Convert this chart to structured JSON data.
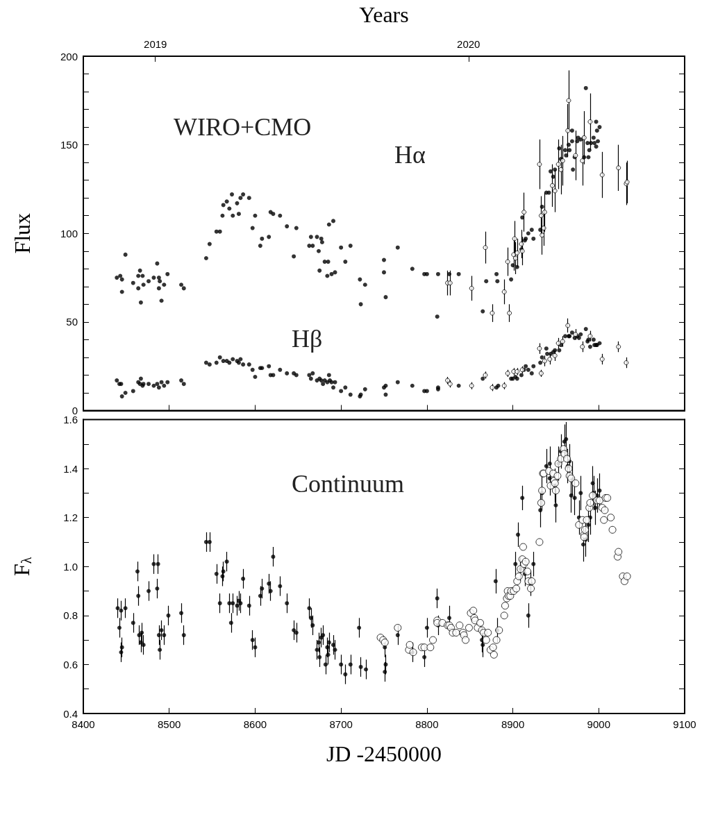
{
  "chart_data": [
    {
      "type": "scatter",
      "x2label": "Years",
      "ylabel": "Flux",
      "xlim": [
        8400,
        9100
      ],
      "xticks": [
        {
          "value": 8500,
          "label": null
        },
        {
          "value": 8600,
          "label": null
        },
        {
          "value": 8700,
          "label": null
        },
        {
          "value": 8800,
          "label": null
        },
        {
          "value": 8900,
          "label": null
        },
        {
          "value": 9000,
          "label": null
        }
      ],
      "x2lim": [
        2018.77,
        2020.69
      ],
      "x2ticks": [
        2019,
        2020
      ],
      "ylim": [
        0,
        200
      ],
      "yticks": [
        0,
        {
          "value": 10,
          "label": null
        },
        {
          "value": 20,
          "label": null
        },
        {
          "value": 30,
          "label": null
        },
        {
          "value": 40,
          "label": null
        },
        50,
        {
          "value": 60,
          "label": null
        },
        {
          "value": 70,
          "label": null
        },
        {
          "value": 80,
          "label": null
        },
        {
          "value": 90,
          "label": null
        },
        100,
        {
          "value": 110,
          "label": null
        },
        {
          "value": 120,
          "label": null
        },
        {
          "value": 130,
          "label": null
        },
        {
          "value": 140,
          "label": null
        },
        150,
        {
          "value": 160,
          "label": null
        },
        {
          "value": 170,
          "label": null
        },
        {
          "value": 180,
          "label": null
        },
        {
          "value": 190,
          "label": null
        },
        200
      ],
      "tick_labels": "y",
      "grid": false,
      "marker": "circle",
      "annotations": [
        "WIRO+CMO",
        "Hα",
        "Hβ"
      ],
      "series": [
        {
          "color": "#000000",
          "x": [
            8439,
            8443,
            8445,
            8445,
            8449,
            8458,
            8464,
            8466,
            8464,
            8469,
            8470,
            8467,
            8476,
            8482,
            8486,
            8488,
            8489,
            8488,
            8491,
            8494,
            8498,
            8514,
            8517,
            8543,
            8547,
            8555,
            8559,
            8562,
            8563,
            8567,
            8570,
            8573,
            8574,
            8579,
            8581,
            8583,
            8586,
            8593,
            8597,
            8600,
            8606,
            8608,
            8616,
            8618,
            8621,
            8629,
            8637,
            8645,
            8648,
            8663,
            8665,
            8667,
            8672,
            8674,
            8675,
            8677,
            8678,
            8681,
            8685,
            8684,
            8689,
            8693,
            8686,
            8691,
            8700,
            8705,
            8711,
            8722,
            8723,
            8728,
            8750,
            8750,
            8752,
            8766,
            8783,
            8797,
            8800,
            8813,
            8812,
            8826,
            8837,
            8865,
            8869,
            8881,
            8882,
            8898,
            8900,
            8905,
            8910,
            8911,
            8914,
            8915,
            8918,
            8922,
            8924,
            8932,
            8934,
            8939,
            8942,
            8944,
            8947,
            8949,
            8954,
            8956,
            8961,
            8962,
            8965,
            8966,
            8969,
            8969,
            8970,
            8972,
            8975,
            8976,
            8979,
            8983,
            8985,
            8987,
            8988,
            8989,
            8991,
            8994,
            8995,
            8997,
            8997,
            8998,
            8999,
            9001
          ],
          "values": [
            75,
            76,
            74,
            67,
            88,
            72,
            76,
            79,
            69,
            76,
            71,
            61,
            73,
            75,
            83,
            75,
            73,
            69,
            62,
            71,
            77,
            71,
            69,
            86,
            94,
            101,
            101,
            110,
            116,
            118,
            114,
            122,
            110,
            117,
            111,
            120,
            122,
            120,
            103,
            110,
            93,
            97,
            98,
            112,
            111,
            110,
            104,
            87,
            103,
            93,
            98,
            93,
            98,
            90,
            79,
            97,
            95,
            84,
            84,
            76,
            77,
            78,
            105,
            107,
            92,
            84,
            93,
            74,
            60,
            71,
            85,
            78,
            64,
            92,
            80,
            77,
            77,
            77,
            53,
            77,
            77,
            56,
            73,
            77,
            73,
            74,
            82,
            81,
            91,
            109,
            96,
            97,
            100,
            102,
            97,
            102,
            115,
            123,
            123,
            135,
            132,
            136,
            148,
            142,
            147,
            144,
            150,
            147,
            158,
            152,
            136,
            143,
            152,
            154,
            153,
            143,
            182,
            151,
            143,
            147,
            151,
            154,
            151,
            149,
            163,
            158,
            152,
            160
          ]
        },
        {
          "color": "#000000",
          "x": [
            8824,
            8827,
            8852,
            8868,
            8876,
            8890,
            8894,
            8896,
            8901,
            8902,
            8903,
            8905,
            8910,
            8911,
            8913,
            8931,
            8933,
            8934,
            8936,
            8937,
            8946,
            8949,
            8953,
            8956,
            8958,
            8965,
            8964,
            8973,
            8981,
            8983,
            8990,
            9004,
            9023,
            9032,
            9033
          ],
          "values": [
            72,
            72,
            69,
            92,
            55,
            67,
            84,
            55,
            88,
            97,
            86,
            89,
            94,
            90,
            112,
            139,
            110,
            99,
            103,
            112,
            127,
            124,
            139,
            136,
            141,
            175,
            158,
            144,
            141,
            154,
            163,
            133,
            137,
            128,
            129
          ],
          "errors": [
            7,
            7,
            7,
            9,
            5,
            7,
            8,
            5,
            9,
            10,
            9,
            8,
            8,
            8,
            11,
            14,
            11,
            11,
            10,
            11,
            12,
            12,
            14,
            14,
            14,
            17,
            15,
            14,
            14,
            15,
            16,
            13,
            13,
            12,
            12
          ]
        },
        {
          "color": "#000000",
          "x": [
            8439,
            8442,
            8444,
            8445,
            8449,
            8458,
            8464,
            8466,
            8467,
            8469,
            8470,
            8476,
            8482,
            8486,
            8488,
            8491,
            8494,
            8498,
            8514,
            8517,
            8543,
            8547,
            8555,
            8559,
            8563,
            8567,
            8570,
            8574,
            8579,
            8581,
            8583,
            8586,
            8593,
            8597,
            8600,
            8606,
            8608,
            8616,
            8618,
            8621,
            8629,
            8637,
            8645,
            8648,
            8663,
            8665,
            8667,
            8672,
            8675,
            8677,
            8679,
            8681,
            8684,
            8686,
            8687,
            8689,
            8691,
            8693,
            8700,
            8705,
            8711,
            8722,
            8723,
            8728,
            8750,
            8752,
            8752,
            8766,
            8783,
            8797,
            8800,
            8813,
            8813,
            8837,
            8865,
            8881,
            8883,
            8898,
            8900,
            8903,
            8905,
            8910,
            8913,
            8915,
            8918,
            8922,
            8924,
            8932,
            8934,
            8939,
            8940,
            8944,
            8947,
            8949,
            8954,
            8956,
            8961,
            8965,
            8966,
            8969,
            8972,
            8975,
            8977,
            8979,
            8985,
            8987,
            8988,
            8990,
            8994,
            8995,
            8997,
            8998,
            9001
          ],
          "values": [
            17,
            15,
            15,
            8,
            10,
            11,
            16,
            15,
            18,
            14,
            15,
            15,
            14,
            15,
            13,
            16,
            14,
            16,
            17,
            15,
            27,
            26,
            27,
            30,
            28,
            28,
            27,
            29,
            28,
            27,
            29,
            26,
            26,
            23,
            19,
            24,
            24,
            25,
            20,
            20,
            23,
            21,
            21,
            20,
            20,
            18,
            21,
            17,
            18,
            17,
            15,
            17,
            16,
            20,
            17,
            16,
            13,
            16,
            11,
            13,
            9,
            8,
            9,
            12,
            13,
            9,
            14,
            16,
            14,
            11,
            11,
            13,
            12,
            14,
            18,
            13,
            14,
            18,
            18,
            19,
            18,
            20,
            23,
            25,
            23,
            21,
            25,
            27,
            30,
            35,
            32,
            32,
            33,
            34,
            34,
            37,
            42,
            42,
            42,
            44,
            41,
            42,
            41,
            43,
            46,
            39,
            40,
            36,
            40,
            37,
            37,
            37,
            38
          ]
        },
        {
          "color": "#000000",
          "x": [
            8824,
            8827,
            8852,
            8868,
            8876,
            8890,
            8894,
            8901,
            8905,
            8911,
            8931,
            8933,
            8937,
            8943,
            8949,
            8953,
            8958,
            8964,
            8973,
            8981,
            8990,
            9004,
            9023,
            9032
          ],
          "values": [
            17,
            15,
            14,
            20,
            13,
            14,
            21,
            22,
            22,
            23,
            35,
            21,
            28,
            29,
            31,
            38,
            39,
            48,
            43,
            36,
            42,
            29,
            36,
            27
          ],
          "errors": [
            2,
            2,
            2,
            2,
            2,
            2,
            2,
            2,
            2,
            2,
            3,
            2,
            3,
            3,
            3,
            3,
            3,
            4,
            3,
            3,
            3,
            3,
            3,
            3
          ]
        }
      ]
    },
    {
      "type": "scatter",
      "xlabel": "JD -2450000",
      "ylabel": "F$_{λ}$",
      "xlim": [
        8400,
        9100
      ],
      "xticks": [
        8400,
        8500,
        8600,
        8700,
        8800,
        8900,
        9000,
        9100
      ],
      "ylim": [
        0.4,
        1.6
      ],
      "yticks": [
        0.4,
        {
          "value": 0.5,
          "label": null
        },
        0.6,
        {
          "value": 0.7,
          "label": null
        },
        0.8,
        {
          "value": 0.9,
          "label": null
        },
        {
          "value": 1,
          "label": "1.0"
        },
        {
          "value": 1.1,
          "label": null
        },
        1.2,
        {
          "value": 1.3,
          "label": null
        },
        1.4,
        {
          "value": 1.5,
          "label": null
        },
        1.6
      ],
      "grid": false,
      "marker": "circle",
      "annotations": [
        "Continuum"
      ],
      "series": [
        {
          "color": "#000000",
          "x": [
            8440,
            8442,
            8444,
            8444,
            8445,
            8449,
            8458,
            8463,
            8464,
            8465,
            8467,
            8468,
            8470,
            8476,
            8482,
            8486,
            8487,
            8488,
            8489,
            8491,
            8494,
            8499,
            8514,
            8517,
            8543,
            8547,
            8555,
            8559,
            8562,
            8563,
            8567,
            8570,
            8572,
            8574,
            8579,
            8581,
            8583,
            8586,
            8593,
            8597,
            8600,
            8606,
            8608,
            8616,
            8618,
            8621,
            8629,
            8637,
            8645,
            8648,
            8663,
            8665,
            8667,
            8672,
            8674,
            8675,
            8677,
            8679,
            8682,
            8684,
            8685,
            8686,
            8691,
            8693,
            8700,
            8705,
            8711,
            8721,
            8723,
            8729,
            8751,
            8751,
            8752,
            8766,
            8783,
            8797,
            8800,
            8812,
            8813,
            8826,
            8864,
            8865,
            8880,
            8882,
            8903,
            8906,
            8909,
            8911,
            8914,
            8918,
            8921,
            8924,
            8932,
            8934,
            8939,
            8943,
            8943,
            8949,
            8950,
            8953,
            8956,
            8960,
            8962,
            8964,
            8966,
            8968,
            8969,
            8972,
            8977,
            8979,
            8982,
            8985,
            8988,
            8990,
            8993,
            8994,
            8996,
            8998,
            9001
          ],
          "values": [
            0.83,
            0.75,
            0.82,
            0.65,
            0.67,
            0.83,
            0.77,
            0.98,
            0.88,
            0.72,
            0.69,
            0.73,
            0.68,
            0.9,
            1.01,
            0.91,
            1.01,
            0.72,
            0.66,
            0.74,
            0.72,
            0.8,
            0.81,
            0.72,
            1.1,
            1.1,
            0.97,
            0.85,
            0.96,
            0.98,
            1.02,
            0.85,
            0.77,
            0.85,
            0.84,
            0.86,
            0.85,
            0.95,
            0.84,
            0.7,
            0.67,
            0.88,
            0.91,
            0.93,
            0.9,
            1.04,
            0.92,
            0.85,
            0.74,
            0.73,
            0.83,
            0.79,
            0.76,
            0.66,
            0.69,
            0.63,
            0.71,
            0.72,
            0.6,
            0.67,
            0.64,
            0.69,
            0.68,
            0.66,
            0.6,
            0.56,
            0.6,
            0.75,
            0.59,
            0.58,
            0.57,
            0.67,
            0.6,
            0.72,
            0.65,
            0.63,
            0.75,
            0.87,
            0.76,
            0.79,
            0.7,
            0.68,
            0.94,
            0.74,
            1.01,
            1.13,
            0.99,
            1.28,
            0.97,
            0.8,
            0.93,
            1.01,
            1.23,
            1.3,
            1.41,
            1.42,
            1.36,
            1.33,
            1.25,
            1.42,
            1.47,
            1.51,
            1.52,
            1.41,
            1.43,
            1.29,
            1.36,
            1.28,
            1.2,
            1.3,
            1.09,
            1.11,
            1.17,
            1.2,
            1.34,
            1.3,
            1.24,
            1.29,
            1.31
          ],
          "errors": [
            0.04,
            0.04,
            0.04,
            0.04,
            0.04,
            0.04,
            0.04,
            0.04,
            0.04,
            0.04,
            0.04,
            0.04,
            0.04,
            0.04,
            0.04,
            0.04,
            0.04,
            0.04,
            0.04,
            0.04,
            0.04,
            0.04,
            0.04,
            0.04,
            0.04,
            0.04,
            0.04,
            0.04,
            0.04,
            0.04,
            0.04,
            0.04,
            0.04,
            0.04,
            0.04,
            0.04,
            0.04,
            0.04,
            0.04,
            0.04,
            0.04,
            0.04,
            0.04,
            0.04,
            0.04,
            0.04,
            0.04,
            0.04,
            0.04,
            0.04,
            0.04,
            0.04,
            0.04,
            0.04,
            0.04,
            0.04,
            0.04,
            0.04,
            0.04,
            0.04,
            0.04,
            0.04,
            0.04,
            0.04,
            0.04,
            0.04,
            0.04,
            0.04,
            0.04,
            0.04,
            0.04,
            0.04,
            0.04,
            0.04,
            0.04,
            0.04,
            0.04,
            0.04,
            0.04,
            0.05,
            0.05,
            0.05,
            0.05,
            0.05,
            0.05,
            0.05,
            0.05,
            0.05,
            0.05,
            0.05,
            0.05,
            0.05,
            0.07,
            0.07,
            0.07,
            0.07,
            0.07,
            0.07,
            0.07,
            0.07,
            0.07,
            0.07,
            0.07,
            0.07,
            0.07,
            0.07,
            0.07,
            0.07,
            0.07,
            0.07,
            0.07,
            0.07,
            0.07,
            0.07,
            0.07,
            0.07,
            0.07,
            0.07,
            0.07
          ]
        },
        {
          "color": "#000000",
          "x": [
            8746,
            8749,
            8751,
            8766,
            8779,
            8780,
            8784,
            8794,
            8797,
            8804,
            8807,
            8812,
            8812,
            8818,
            8824,
            8826,
            8828,
            8830,
            8834,
            8838,
            8842,
            8843,
            8845,
            8849,
            8851,
            8854,
            8855,
            8856,
            8859,
            8862,
            8864,
            8866,
            8869,
            8871,
            8874,
            8877,
            8878,
            8881,
            8884,
            8890,
            8891,
            8893,
            8894,
            8895,
            8897,
            8898,
            8901,
            8904,
            8905,
            8907,
            8909,
            8911,
            8912,
            8913,
            8915,
            8917,
            8918,
            8921,
            8922,
            8931,
            8933,
            8934,
            8935,
            8936,
            8942,
            8944,
            8947,
            8948,
            8949,
            8950,
            8952,
            8953,
            8956,
            8959,
            8960,
            8963,
            8965,
            8966,
            8968,
            8973,
            8977,
            8981,
            8983,
            8983,
            8984,
            8986,
            8989,
            8990,
            8993,
            8998,
            9001,
            9004,
            9006,
            9007,
            9008,
            9010,
            9014,
            9016,
            9022,
            9023,
            9028,
            9030,
            9033
          ],
          "values": [
            0.71,
            0.7,
            0.69,
            0.75,
            0.66,
            0.68,
            0.65,
            0.67,
            0.67,
            0.67,
            0.7,
            0.78,
            0.77,
            0.77,
            0.76,
            0.76,
            0.75,
            0.73,
            0.73,
            0.76,
            0.73,
            0.72,
            0.7,
            0.75,
            0.81,
            0.82,
            0.79,
            0.78,
            0.75,
            0.77,
            0.74,
            0.73,
            0.7,
            0.73,
            0.66,
            0.67,
            0.64,
            0.7,
            0.74,
            0.8,
            0.84,
            0.87,
            0.9,
            0.88,
            0.88,
            0.9,
            0.9,
            0.91,
            0.94,
            0.96,
            0.99,
            1.03,
            1.08,
            1.01,
            1.02,
            0.98,
            0.94,
            0.91,
            0.94,
            1.1,
            1.26,
            1.31,
            1.38,
            1.38,
            1.39,
            1.33,
            1.38,
            1.35,
            1.34,
            1.31,
            1.37,
            1.42,
            1.44,
            1.48,
            1.46,
            1.44,
            1.4,
            1.37,
            1.36,
            1.34,
            1.17,
            1.19,
            1.13,
            1.12,
            1.15,
            1.19,
            1.24,
            1.26,
            1.29,
            1.27,
            1.27,
            1.24,
            1.19,
            1.23,
            1.28,
            1.28,
            1.2,
            1.15,
            1.04,
            1.06,
            0.96,
            0.94,
            0.96
          ]
        }
      ]
    }
  ]
}
